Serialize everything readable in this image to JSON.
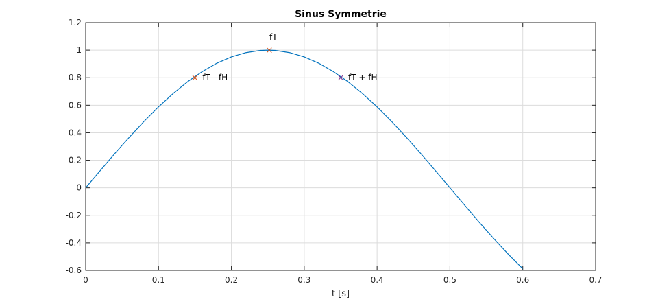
{
  "chart_data": {
    "type": "line",
    "title": "Sinus Symmetrie",
    "xlabel": "t [s]",
    "ylabel": "",
    "xlim": [
      0,
      0.7
    ],
    "ylim": [
      -0.6,
      1.2
    ],
    "xticks": [
      0,
      0.1,
      0.2,
      0.3,
      0.4,
      0.5,
      0.6,
      0.7
    ],
    "xtick_labels": [
      "0",
      "0.1",
      "0.2",
      "0.3",
      "0.4",
      "0.5",
      "0.6",
      "0.7"
    ],
    "yticks": [
      -0.6,
      -0.4,
      -0.2,
      0,
      0.2,
      0.4,
      0.6,
      0.8,
      1,
      1.2
    ],
    "ytick_labels": [
      "-0.6",
      "-0.4",
      "-0.2",
      "0",
      "0.2",
      "0.4",
      "0.6",
      "0.8",
      "1",
      "1.2"
    ],
    "grid": true,
    "series": [
      {
        "color": "#0072BD",
        "x": [
          0,
          0.02,
          0.04,
          0.06,
          0.08,
          0.1,
          0.12,
          0.14,
          0.16,
          0.18,
          0.2,
          0.22,
          0.24,
          0.25,
          0.26,
          0.28,
          0.3,
          0.32,
          0.34,
          0.36,
          0.38,
          0.4,
          0.42,
          0.44,
          0.46,
          0.48,
          0.5,
          0.52,
          0.54,
          0.56,
          0.58,
          0.6
        ],
        "y": [
          0,
          0.125,
          0.249,
          0.368,
          0.482,
          0.588,
          0.685,
          0.771,
          0.844,
          0.905,
          0.951,
          0.982,
          0.998,
          1,
          0.998,
          0.982,
          0.951,
          0.905,
          0.844,
          0.771,
          0.685,
          0.588,
          0.482,
          0.368,
          0.249,
          0.125,
          0,
          -0.125,
          -0.249,
          -0.368,
          -0.482,
          -0.588
        ]
      }
    ],
    "markers": [
      {
        "label": "fT - fH",
        "x": 0.15,
        "y": 0.8,
        "color": "#D95319",
        "label_pos": "right"
      },
      {
        "label": "fT",
        "x": 0.252,
        "y": 1.0,
        "color": "#D95319",
        "label_pos": "above"
      },
      {
        "label": "fT + fH",
        "x": 0.35,
        "y": 0.8,
        "color": "#7E2F8E",
        "label_pos": "right"
      }
    ]
  }
}
